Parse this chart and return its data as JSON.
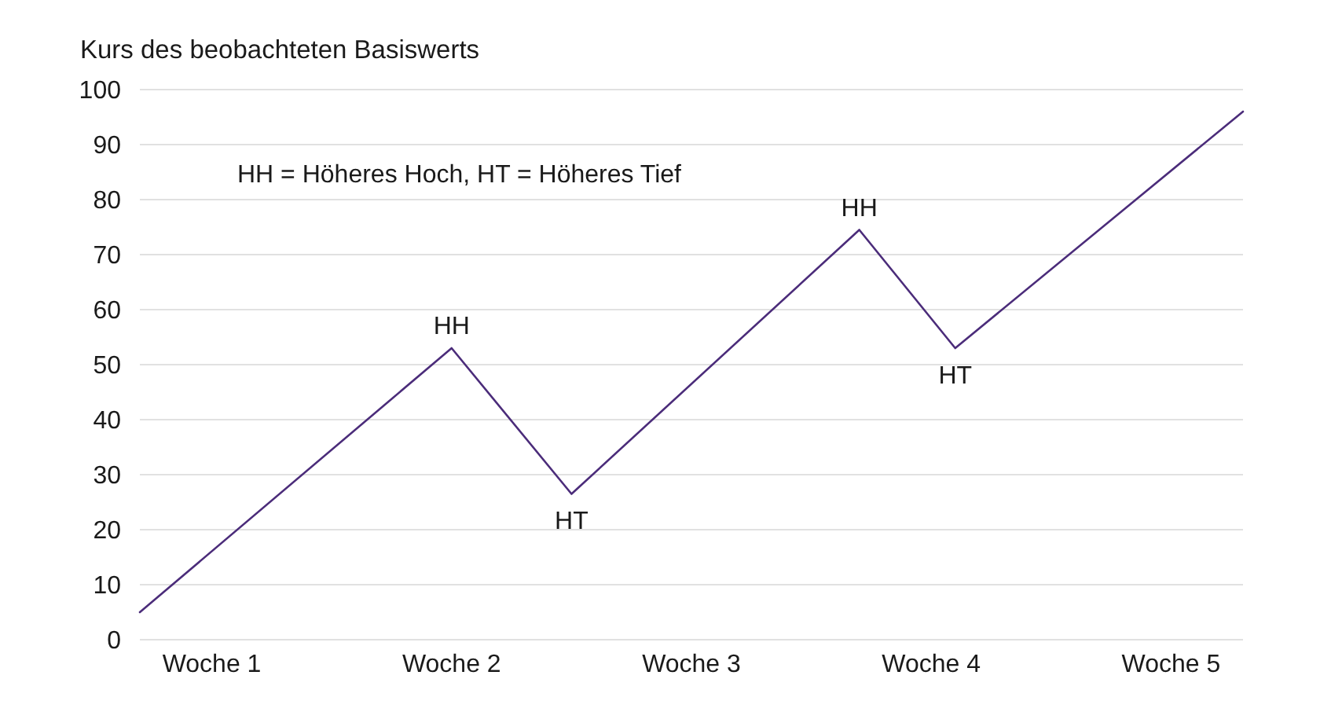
{
  "chart_data": {
    "type": "line",
    "ylabel": "Kurs des beobachteten Basiswerts",
    "categories": [
      null,
      null,
      null,
      "Woche 1",
      null,
      null,
      null,
      null,
      null,
      null,
      null,
      null,
      null,
      "Woche 2",
      null,
      null,
      null,
      null,
      null,
      null,
      null,
      null,
      null,
      "Woche 3",
      null,
      null,
      null,
      null,
      null,
      null,
      null,
      null,
      null,
      "Woche 4",
      null,
      null,
      null,
      null,
      null,
      null,
      null,
      null,
      null,
      "Woche 5",
      null,
      null,
      null
    ],
    "series": [
      {
        "color": "#4b2c7a",
        "values": [
          5,
          null,
          null,
          null,
          null,
          null,
          null,
          null,
          null,
          null,
          null,
          null,
          null,
          53,
          null,
          null,
          null,
          null,
          26.5,
          null,
          null,
          null,
          null,
          null,
          null,
          null,
          null,
          null,
          null,
          null,
          74.5,
          null,
          null,
          null,
          53,
          null,
          null,
          null,
          null,
          null,
          null,
          null,
          null,
          null,
          null,
          null,
          96
        ]
      }
    ],
    "ylim": [
      0,
      100
    ],
    "yticks": [
      0,
      10,
      20,
      30,
      40,
      50,
      60,
      70,
      80,
      90,
      100
    ],
    "grid": "y",
    "annotations": [
      "HH = Höheres Hoch, HT = Höheres Tief",
      {
        "text": "HH",
        "x": "Woche 2",
        "y": 53
      },
      {
        "text": "HT",
        "y": 26.5
      },
      {
        "text": "HH",
        "y": 74.5
      },
      {
        "text": "HT",
        "y": 53
      }
    ]
  }
}
